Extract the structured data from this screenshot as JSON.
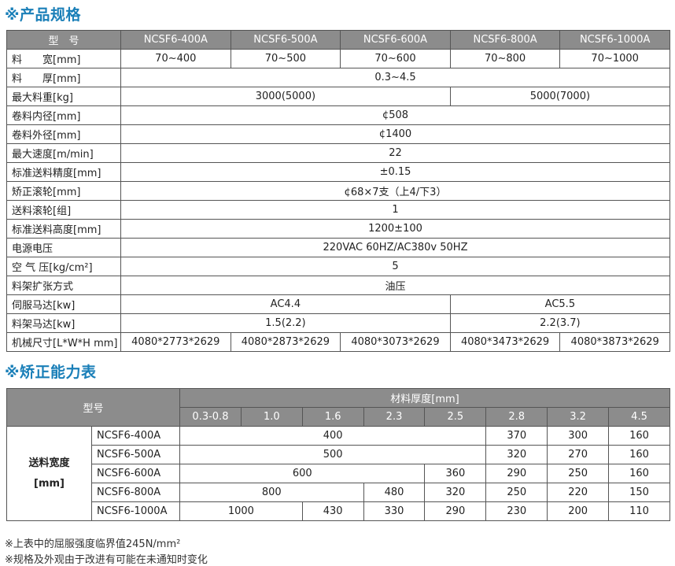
{
  "spec": {
    "title": "※产品规格",
    "header_label": "型　号",
    "models": [
      "NCSF6-400A",
      "NCSF6-500A",
      "NCSF6-600A",
      "NCSF6-800A",
      "NCSF6-1000A"
    ],
    "rows": [
      {
        "label": "料　　宽[mm]",
        "cells": [
          {
            "v": "70~400",
            "span": 1
          },
          {
            "v": "70~500",
            "span": 1
          },
          {
            "v": "70~600",
            "span": 1
          },
          {
            "v": "70~800",
            "span": 1
          },
          {
            "v": "70~1000",
            "span": 1
          }
        ]
      },
      {
        "label": "料　　厚[mm]",
        "cells": [
          {
            "v": "0.3~4.5",
            "span": 5
          }
        ]
      },
      {
        "label": "最大料重[kg]",
        "cells": [
          {
            "v": "3000(5000)",
            "span": 3
          },
          {
            "v": "5000(7000)",
            "span": 2
          }
        ]
      },
      {
        "label": "卷料内径[mm]",
        "cells": [
          {
            "v": "¢508",
            "span": 5
          }
        ]
      },
      {
        "label": "卷料外径[mm]",
        "cells": [
          {
            "v": "¢1400",
            "span": 5
          }
        ]
      },
      {
        "label": "最大速度[m/min]",
        "cells": [
          {
            "v": "22",
            "span": 5
          }
        ]
      },
      {
        "label": "标准送料精度[mm]",
        "cells": [
          {
            "v": "±0.15",
            "span": 5
          }
        ]
      },
      {
        "label": "矫正滚轮[mm]",
        "cells": [
          {
            "v": "¢68×7支（上4/下3）",
            "span": 5
          }
        ]
      },
      {
        "label": "送料滚轮[组]",
        "cells": [
          {
            "v": "1",
            "span": 5
          }
        ]
      },
      {
        "label": "标准送料高度[mm]",
        "cells": [
          {
            "v": "1200±100",
            "span": 5
          }
        ]
      },
      {
        "label": "电源电压",
        "cells": [
          {
            "v": "220VAC 60HZ/AC380v 50HZ",
            "span": 5
          }
        ]
      },
      {
        "label": "空 气 压[kg/cm²]",
        "cells": [
          {
            "v": "5",
            "span": 5
          }
        ]
      },
      {
        "label": "料架扩张方式",
        "cells": [
          {
            "v": "油压",
            "span": 5
          }
        ]
      },
      {
        "label": "伺服马达[kw]",
        "cells": [
          {
            "v": "AC4.4",
            "span": 3
          },
          {
            "v": "AC5.5",
            "span": 2
          }
        ]
      },
      {
        "label": "料架马达[kw]",
        "cells": [
          {
            "v": "1.5(2.2)",
            "span": 3
          },
          {
            "v": "2.2(3.7)",
            "span": 2
          }
        ]
      },
      {
        "label": "机械尺寸[L*W*H mm]",
        "cells": [
          {
            "v": "4080*2773*2629",
            "span": 1
          },
          {
            "v": "4080*2873*2629",
            "span": 1
          },
          {
            "v": "4080*3073*2629",
            "span": 1
          },
          {
            "v": "4080*3473*2629",
            "span": 1
          },
          {
            "v": "4080*3873*2629",
            "span": 1
          }
        ]
      }
    ]
  },
  "capacity": {
    "title": "※矫正能力表",
    "header_label": "型号",
    "thickness_label": "材料厚度[mm]",
    "thicknesses": [
      "0.3-0.8",
      "1.0",
      "1.6",
      "2.3",
      "2.5",
      "2.8",
      "3.2",
      "4.5"
    ],
    "side_label_1": "送料宽度",
    "side_label_2": "[mm]",
    "rows": [
      {
        "model": "NCSF6-400A",
        "cells": [
          {
            "v": "400",
            "span": 5
          },
          {
            "v": "370",
            "span": 1
          },
          {
            "v": "300",
            "span": 1
          },
          {
            "v": "160",
            "span": 1
          }
        ]
      },
      {
        "model": "NCSF6-500A",
        "cells": [
          {
            "v": "500",
            "span": 5
          },
          {
            "v": "320",
            "span": 1
          },
          {
            "v": "270",
            "span": 1
          },
          {
            "v": "160",
            "span": 1
          }
        ]
      },
      {
        "model": "NCSF6-600A",
        "cells": [
          {
            "v": "600",
            "span": 4
          },
          {
            "v": "360",
            "span": 1
          },
          {
            "v": "290",
            "span": 1
          },
          {
            "v": "250",
            "span": 1
          },
          {
            "v": "160",
            "span": 1
          }
        ]
      },
      {
        "model": "NCSF6-800A",
        "cells": [
          {
            "v": "800",
            "span": 3
          },
          {
            "v": "480",
            "span": 1
          },
          {
            "v": "320",
            "span": 1
          },
          {
            "v": "250",
            "span": 1
          },
          {
            "v": "220",
            "span": 1
          },
          {
            "v": "150",
            "span": 1
          }
        ]
      },
      {
        "model": "NCSF6-1000A",
        "cells": [
          {
            "v": "1000",
            "span": 2
          },
          {
            "v": "430",
            "span": 1
          },
          {
            "v": "330",
            "span": 1
          },
          {
            "v": "290",
            "span": 1
          },
          {
            "v": "230",
            "span": 1
          },
          {
            "v": "200",
            "span": 1
          },
          {
            "v": "110",
            "span": 1
          }
        ]
      }
    ]
  },
  "notes": [
    "※上表中的屈服强度临界值245N/mm²",
    "※规格及外观由于改进有可能在未通知时变化"
  ],
  "colors": {
    "title": "#1a7fb8",
    "header_bg": "#8c8c8c"
  }
}
